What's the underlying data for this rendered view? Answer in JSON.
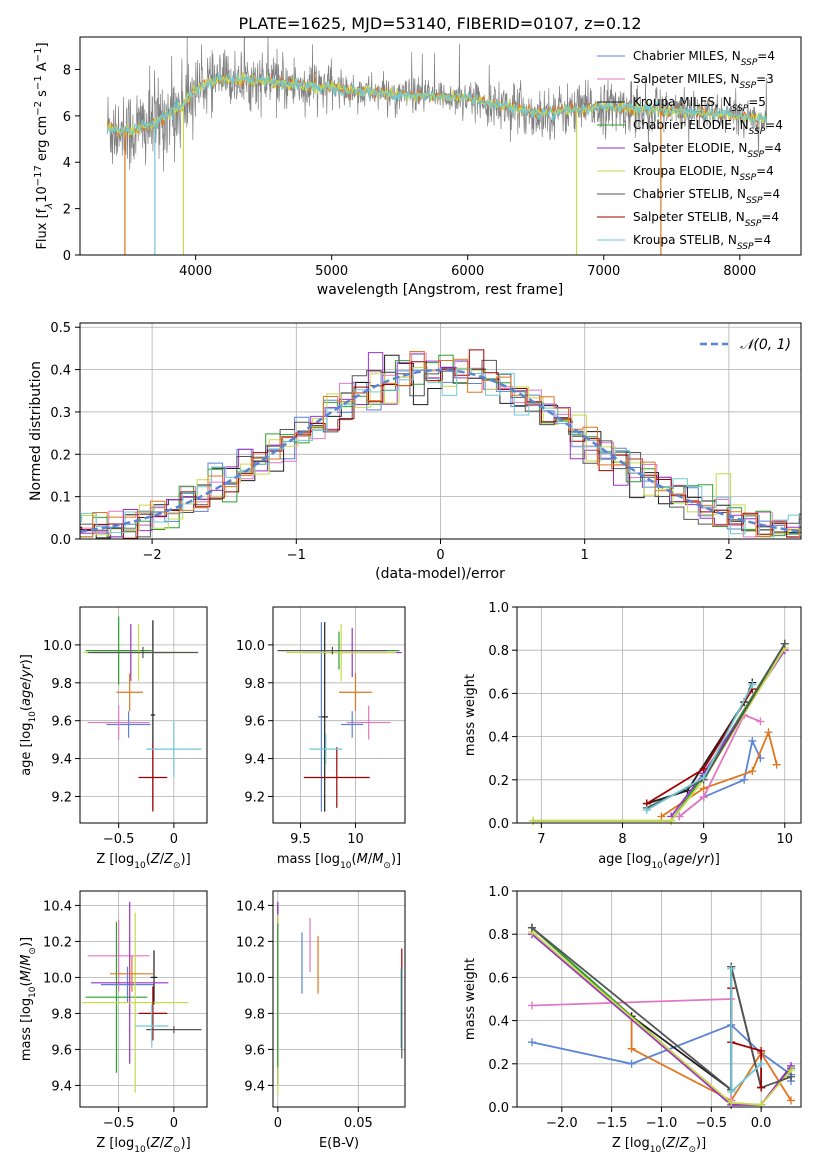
{
  "title": "PLATE=1625, MJD=53140, FIBERID=0107, z=0.12",
  "colors": {
    "chabrier_miles": "#5b84d6",
    "salpeter_miles": "#e377c2",
    "kroupa_miles": "#1f1f1f",
    "chabrier_elodie": "#2ca02c",
    "salpeter_elodie": "#9b30c7",
    "kroupa_elodie": "#c9d94a",
    "chabrier_stelib": "#555555",
    "salpeter_stelib": "#a00000",
    "kroupa_stelib": "#6fc9d4",
    "orange": "#e1761f",
    "gray_data": "#808080",
    "normal": "#5b84d6"
  },
  "chart_data": [
    {
      "id": "spectrum",
      "type": "line",
      "xlabel": "wavelength [Angstrom, rest frame]",
      "ylabel": "Flux [f_λ10^-17 erg cm^-2 s^-1 A^-1]",
      "xlim": [
        3150,
        8450
      ],
      "ylim": [
        0,
        9.4
      ],
      "xticks": [
        4000,
        5000,
        6000,
        7000,
        8000
      ],
      "yticks": [
        0,
        2,
        4,
        6,
        8
      ],
      "grid": false,
      "legend_position": "top-right",
      "legend": [
        {
          "label": "Chabrier MILES, N",
          "sub": "SSP",
          "tail": "=4",
          "color": "chabrier_miles"
        },
        {
          "label": "Salpeter MILES, N",
          "sub": "SSP",
          "tail": "=3",
          "color": "salpeter_miles"
        },
        {
          "label": "Kroupa MILES, N",
          "sub": "SSP",
          "tail": "=5",
          "color": "kroupa_miles"
        },
        {
          "label": "Chabrier ELODIE, N",
          "sub": "SSP",
          "tail": "=4",
          "color": "chabrier_elodie"
        },
        {
          "label": "Salpeter ELODIE, N",
          "sub": "SSP",
          "tail": "=4",
          "color": "salpeter_elodie"
        },
        {
          "label": "Kroupa ELODIE, N",
          "sub": "SSP",
          "tail": "=4",
          "color": "kroupa_elodie"
        },
        {
          "label": "Chabrier STELIB, N",
          "sub": "SSP",
          "tail": "=4",
          "color": "chabrier_stelib"
        },
        {
          "label": "Salpeter STELIB, N",
          "sub": "SSP",
          "tail": "=4",
          "color": "salpeter_stelib"
        },
        {
          "label": "Kroupa STELIB, N",
          "sub": "SSP",
          "tail": "=4",
          "color": "kroupa_stelib"
        }
      ],
      "continuum": [
        [
          3350,
          5.5
        ],
        [
          3500,
          5.3
        ],
        [
          3700,
          5.7
        ],
        [
          3900,
          6.4
        ],
        [
          4000,
          7.2
        ],
        [
          4200,
          7.6
        ],
        [
          4500,
          7.5
        ],
        [
          5000,
          7.2
        ],
        [
          5500,
          6.9
        ],
        [
          6000,
          6.8
        ],
        [
          6500,
          6.1
        ],
        [
          7000,
          6.4
        ],
        [
          7500,
          6.2
        ],
        [
          8000,
          6.0
        ],
        [
          8200,
          5.8
        ]
      ]
    },
    {
      "id": "residuals",
      "type": "histogram",
      "xlabel": "(data-model)/error",
      "ylabel": "Normed distribution",
      "xlim": [
        -2.5,
        2.5
      ],
      "ylim": [
        0,
        0.51
      ],
      "xticks": [
        -2,
        -1,
        0,
        1,
        2
      ],
      "yticks": [
        0.0,
        0.1,
        0.2,
        0.3,
        0.4,
        0.5
      ],
      "grid": true,
      "legend_position": "top-right",
      "legend": [
        {
          "label": "N(0,1)",
          "style": "dashed",
          "color": "normal"
        }
      ],
      "bin_width": 0.1
    },
    {
      "id": "age_vs_Z",
      "type": "scatter",
      "xlabel": "Z [log10(Z/Z⊙)]",
      "ylabel": "age  [log10(age/yr)]",
      "xlim": [
        -0.85,
        0.3
      ],
      "ylim": [
        9.06,
        10.2
      ],
      "xticks": [
        -0.5,
        0.0
      ],
      "yticks": [
        9.2,
        9.4,
        9.6,
        9.8,
        10.0
      ],
      "points": [
        {
          "color": "chabrier_miles",
          "x": -0.41,
          "xerr": 0.2,
          "y": 9.58,
          "yerr": 0.07
        },
        {
          "color": "salpeter_miles",
          "x": -0.5,
          "xerr": 0.28,
          "y": 9.59,
          "yerr": 0.09
        },
        {
          "color": "kroupa_miles",
          "x": -0.19,
          "xerr": 0.02,
          "y": 9.63,
          "yerr": 0.5
        },
        {
          "color": "chabrier_elodie",
          "x": -0.5,
          "xerr": 0.3,
          "y": 9.97,
          "yerr": 0.18
        },
        {
          "color": "salpeter_elodie",
          "x": -0.39,
          "xerr": 0.35,
          "y": 9.96,
          "yerr": 0.15
        },
        {
          "color": "kroupa_elodie",
          "x": -0.32,
          "xerr": 0.5,
          "y": 9.96,
          "yerr": 0.15
        },
        {
          "color": "chabrier_stelib",
          "x": -0.28,
          "xerr": 0.5,
          "y": 9.96,
          "yerr": 0.03
        },
        {
          "color": "salpeter_stelib",
          "x": -0.19,
          "xerr": 0.13,
          "y": 9.3,
          "yerr": 0.18
        },
        {
          "color": "kroupa_stelib",
          "x": 0.0,
          "xerr": 0.25,
          "y": 9.45,
          "yerr": 0.15
        },
        {
          "color": "orange",
          "x": -0.4,
          "xerr": 0.12,
          "y": 9.75,
          "yerr": 0.1
        }
      ]
    },
    {
      "id": "age_vs_mass",
      "type": "scatter",
      "xlabel": "mass [log10(M/M⊙)]",
      "ylabel": "",
      "xlim": [
        9.25,
        10.45
      ],
      "ylim": [
        9.06,
        10.2
      ],
      "xticks": [
        9.5,
        10.0
      ],
      "yticks": [
        9.2,
        9.4,
        9.6,
        9.8,
        10.0
      ],
      "points": [
        {
          "color": "chabrier_miles",
          "x": 9.69,
          "xerr": 0.03,
          "y": 9.62,
          "yerr": 0.5
        },
        {
          "color": "salpeter_miles",
          "x": 10.12,
          "xerr": 0.2,
          "y": 9.59,
          "yerr": 0.09
        },
        {
          "color": "kroupa_miles",
          "x": 9.72,
          "xerr": 0.03,
          "y": 9.62,
          "yerr": 0.5
        },
        {
          "color": "chabrier_elodie",
          "x": 9.85,
          "xerr": 0.55,
          "y": 9.97,
          "yerr": 0.1
        },
        {
          "color": "salpeter_elodie",
          "x": 9.97,
          "xerr": 0.45,
          "y": 9.96,
          "yerr": 0.13
        },
        {
          "color": "kroupa_elodie",
          "x": 9.87,
          "xerr": 0.5,
          "y": 9.96,
          "yerr": 0.15
        },
        {
          "color": "chabrier_stelib",
          "x": 9.79,
          "xerr": 0.5,
          "y": 9.97,
          "yerr": 0.02
        },
        {
          "color": "salpeter_stelib",
          "x": 9.83,
          "xerr": 0.3,
          "y": 9.3,
          "yerr": 0.16
        },
        {
          "color": "kroupa_stelib",
          "x": 9.73,
          "xerr": 0.15,
          "y": 9.45,
          "yerr": 0.08
        },
        {
          "color": "orange",
          "x": 10.0,
          "xerr": 0.15,
          "y": 9.75,
          "yerr": 0.1
        },
        {
          "color": "chabrier_miles",
          "x": 9.97,
          "xerr": 0.1,
          "y": 9.58,
          "yerr": 0.07
        }
      ]
    },
    {
      "id": "weight_vs_age",
      "type": "line",
      "xlabel": "age  [log10(age/yr)]",
      "ylabel": "mass weight",
      "xlim": [
        6.7,
        10.2
      ],
      "ylim": [
        0,
        1.0
      ],
      "xticks": [
        7,
        8,
        9,
        10
      ],
      "yticks": [
        0.0,
        0.2,
        0.4,
        0.6,
        0.8,
        1.0
      ],
      "grid": true,
      "series": [
        {
          "color": "chabrier_miles",
          "x": [
            8.7,
            9.0,
            9.5,
            9.6,
            9.7
          ],
          "y": [
            0.03,
            0.12,
            0.2,
            0.38,
            0.3
          ]
        },
        {
          "color": "orange",
          "x": [
            8.48,
            9.0,
            9.6,
            9.8,
            9.9
          ],
          "y": [
            0.03,
            0.16,
            0.24,
            0.42,
            0.27
          ]
        },
        {
          "color": "salpeter_miles",
          "x": [
            8.7,
            9.0,
            9.5,
            9.7
          ],
          "y": [
            0.03,
            0.12,
            0.5,
            0.47
          ]
        },
        {
          "color": "kroupa_miles",
          "x": [
            8.3,
            8.8,
            9.5,
            9.6
          ],
          "y": [
            0.09,
            0.15,
            0.56,
            0.65
          ]
        },
        {
          "color": "chabrier_elodie",
          "x": [
            6.9,
            8.6,
            9.0,
            10.0
          ],
          "y": [
            0.01,
            0.01,
            0.22,
            0.83
          ]
        },
        {
          "color": "salpeter_elodie",
          "x": [
            8.6,
            9.0,
            10.0
          ],
          "y": [
            0.03,
            0.23,
            0.8
          ]
        },
        {
          "color": "kroupa_elodie",
          "x": [
            6.9,
            8.6,
            9.0,
            10.0
          ],
          "y": [
            0.01,
            0.01,
            0.2,
            0.81
          ]
        },
        {
          "color": "chabrier_stelib",
          "x": [
            8.3,
            9.0,
            10.0
          ],
          "y": [
            0.07,
            0.2,
            0.83
          ]
        },
        {
          "color": "salpeter_stelib",
          "x": [
            8.3,
            9.0,
            9.6
          ],
          "y": [
            0.09,
            0.25,
            0.62
          ]
        },
        {
          "color": "kroupa_stelib",
          "x": [
            8.3,
            9.0,
            9.6
          ],
          "y": [
            0.06,
            0.21,
            0.64
          ]
        }
      ]
    },
    {
      "id": "mass_vs_Z",
      "type": "scatter",
      "xlabel": "Z [log10(Z/Z⊙)]",
      "ylabel": "mass [log10(M/M⊙)]",
      "xlim": [
        -0.85,
        0.3
      ],
      "ylim": [
        9.28,
        10.48
      ],
      "xticks": [
        -0.5,
        0.0
      ],
      "yticks": [
        9.4,
        9.6,
        9.8,
        10.0,
        10.2,
        10.4
      ],
      "points": [
        {
          "color": "chabrier_miles",
          "x": -0.42,
          "xerr": 0.24,
          "y": 9.96,
          "yerr": 0.1
        },
        {
          "color": "salpeter_miles",
          "x": -0.5,
          "xerr": 0.28,
          "y": 10.12,
          "yerr": 0.2
        },
        {
          "color": "kroupa_miles",
          "x": -0.18,
          "xerr": 0.03,
          "y": 10.0,
          "yerr": 0.15
        },
        {
          "color": "chabrier_elodie",
          "x": -0.52,
          "xerr": 0.28,
          "y": 9.89,
          "yerr": 0.42
        },
        {
          "color": "salpeter_elodie",
          "x": -0.4,
          "xerr": 0.35,
          "y": 9.97,
          "yerr": 0.45
        },
        {
          "color": "kroupa_elodie",
          "x": -0.35,
          "xerr": 0.48,
          "y": 9.86,
          "yerr": 0.5
        },
        {
          "color": "chabrier_stelib",
          "x": 0.0,
          "xerr": 0.25,
          "y": 9.71,
          "yerr": 0.02
        },
        {
          "color": "salpeter_stelib",
          "x": -0.19,
          "xerr": 0.13,
          "y": 9.8,
          "yerr": 0.15
        },
        {
          "color": "kroupa_stelib",
          "x": -0.2,
          "xerr": 0.15,
          "y": 9.73,
          "yerr": 0.12
        },
        {
          "color": "orange",
          "x": -0.38,
          "xerr": 0.2,
          "y": 10.02,
          "yerr": 0.1
        }
      ]
    },
    {
      "id": "mass_vs_ebv",
      "type": "scatter",
      "xlabel": "E(B-V)",
      "ylabel": "",
      "xlim": [
        -0.003,
        0.079
      ],
      "ylim": [
        9.28,
        10.48
      ],
      "xticks": [
        0.0,
        0.05
      ],
      "yticks": [
        9.4,
        9.6,
        9.8,
        10.0,
        10.2,
        10.4
      ],
      "points": [
        {
          "color": "chabrier_miles",
          "x": 0.015,
          "xerr": 0,
          "y": 10.08,
          "yerr": 0.17
        },
        {
          "color": "salpeter_miles",
          "x": 0.02,
          "xerr": 0,
          "y": 10.18,
          "yerr": 0.15
        },
        {
          "color": "orange",
          "x": 0.025,
          "xerr": 0,
          "y": 10.07,
          "yerr": 0.16
        },
        {
          "color": "kroupa_miles",
          "x": 0.0,
          "xerr": 0,
          "y": 9.9,
          "yerr": 0.5
        },
        {
          "color": "salpeter_elodie",
          "x": 0.0,
          "xerr": 0,
          "y": 10.0,
          "yerr": 0.42
        },
        {
          "color": "kroupa_elodie",
          "x": 0.0,
          "xerr": 0,
          "y": 9.85,
          "yerr": 0.5
        },
        {
          "color": "chabrier_elodie",
          "x": 0.0,
          "xerr": 0,
          "y": 9.9,
          "yerr": 0.4
        },
        {
          "color": "salpeter_stelib",
          "x": 0.077,
          "xerr": 0,
          "y": 10.1,
          "yerr": 0.06
        },
        {
          "color": "kroupa_stelib",
          "x": 0.0765,
          "xerr": 0,
          "y": 9.83,
          "yerr": 0.22
        },
        {
          "color": "chabrier_stelib",
          "x": 0.077,
          "xerr": 0,
          "y": 9.8,
          "yerr": 0.25
        }
      ]
    },
    {
      "id": "weight_vs_Z",
      "type": "line",
      "xlabel": "Z [log10(Z/Z⊙)]",
      "ylabel": "mass weight",
      "xlim": [
        -2.45,
        0.4
      ],
      "ylim": [
        0,
        1.0
      ],
      "xticks": [
        -2.0,
        -1.5,
        -1.0,
        -0.5,
        0.0
      ],
      "yticks": [
        0.0,
        0.2,
        0.4,
        0.6,
        0.8,
        1.0
      ],
      "grid": true,
      "series": [
        {
          "color": "chabrier_miles",
          "x": [
            -2.3,
            -1.3,
            -0.3,
            0.0,
            0.3,
            0.3
          ],
          "y": [
            0.3,
            0.2,
            0.38,
            0.25,
            0.15,
            0.12
          ]
        },
        {
          "color": "orange",
          "x": [
            -1.3,
            -1.3,
            -0.3,
            0.0,
            0.3
          ],
          "y": [
            0.42,
            0.27,
            0.03,
            0.25,
            0.03
          ]
        },
        {
          "color": "salpeter_miles",
          "x": [
            -2.3,
            -0.3,
            -0.3
          ],
          "y": [
            0.47,
            0.5,
            0.03
          ]
        },
        {
          "color": "kroupa_miles",
          "x": [
            -2.3,
            -1.3,
            -0.3,
            -0.3,
            0.0
          ],
          "y": [
            0.83,
            0.42,
            0.08,
            0.65,
            0.09
          ]
        },
        {
          "color": "chabrier_elodie",
          "x": [
            -2.3,
            -0.3,
            0.0,
            0.3
          ],
          "y": [
            0.83,
            0.01,
            0.01,
            0.18
          ]
        },
        {
          "color": "salpeter_elodie",
          "x": [
            -2.3,
            -0.3,
            0.0,
            0.3
          ],
          "y": [
            0.8,
            0.01,
            0.01,
            0.19
          ]
        },
        {
          "color": "kroupa_elodie",
          "x": [
            -2.3,
            -0.3,
            0.0,
            0.3
          ],
          "y": [
            0.81,
            0.02,
            0.01,
            0.17
          ]
        },
        {
          "color": "chabrier_stelib",
          "x": [
            -2.3,
            -0.3,
            -0.3,
            0.0,
            0.3
          ],
          "y": [
            0.83,
            0.08,
            0.65,
            0.09,
            0.14
          ]
        },
        {
          "color": "salpeter_stelib",
          "x": [
            -0.3,
            -0.3,
            0.0,
            0.0
          ],
          "y": [
            0.55,
            0.3,
            0.26,
            0.09
          ]
        },
        {
          "color": "kroupa_stelib",
          "x": [
            -0.3,
            -0.3,
            0.0
          ],
          "y": [
            0.64,
            0.07,
            0.2
          ]
        }
      ]
    }
  ]
}
